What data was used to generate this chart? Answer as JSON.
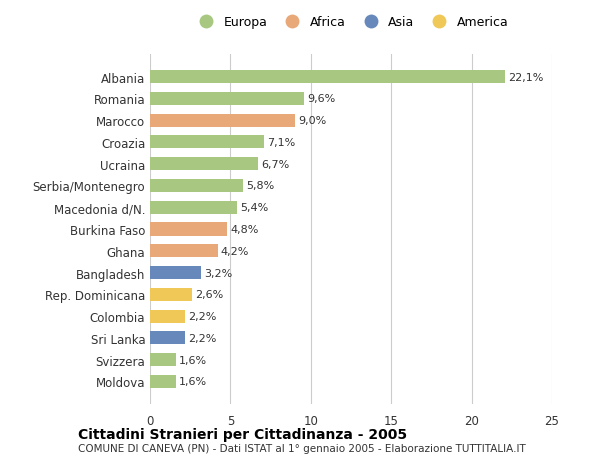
{
  "categories": [
    "Albania",
    "Romania",
    "Marocco",
    "Croazia",
    "Ucraina",
    "Serbia/Montenegro",
    "Macedonia d/N.",
    "Burkina Faso",
    "Ghana",
    "Bangladesh",
    "Rep. Dominicana",
    "Colombia",
    "Sri Lanka",
    "Svizzera",
    "Moldova"
  ],
  "values": [
    22.1,
    9.6,
    9.0,
    7.1,
    6.7,
    5.8,
    5.4,
    4.8,
    4.2,
    3.2,
    2.6,
    2.2,
    2.2,
    1.6,
    1.6
  ],
  "labels": [
    "22,1%",
    "9,6%",
    "9,0%",
    "7,1%",
    "6,7%",
    "5,8%",
    "5,4%",
    "4,8%",
    "4,2%",
    "3,2%",
    "2,6%",
    "2,2%",
    "2,2%",
    "1,6%",
    "1,6%"
  ],
  "continents": [
    "Europa",
    "Europa",
    "Africa",
    "Europa",
    "Europa",
    "Europa",
    "Europa",
    "Africa",
    "Africa",
    "Asia",
    "America",
    "America",
    "Asia",
    "Europa",
    "Europa"
  ],
  "continent_colors": {
    "Europa": "#a8c882",
    "Africa": "#e8a878",
    "Asia": "#6688bb",
    "America": "#f0c857"
  },
  "legend_items": [
    "Europa",
    "Africa",
    "Asia",
    "America"
  ],
  "legend_colors": [
    "#a8c882",
    "#e8a878",
    "#6688bb",
    "#f0c857"
  ],
  "title": "Cittadini Stranieri per Cittadinanza - 2005",
  "subtitle": "COMUNE DI CANEVA (PN) - Dati ISTAT al 1° gennaio 2005 - Elaborazione TUTTITALIA.IT",
  "xlim": [
    0,
    25
  ],
  "xticks": [
    0,
    5,
    10,
    15,
    20,
    25
  ],
  "background_color": "#ffffff",
  "grid_color": "#cccccc",
  "bar_height": 0.6,
  "fig_width": 6.0,
  "fig_height": 4.6
}
